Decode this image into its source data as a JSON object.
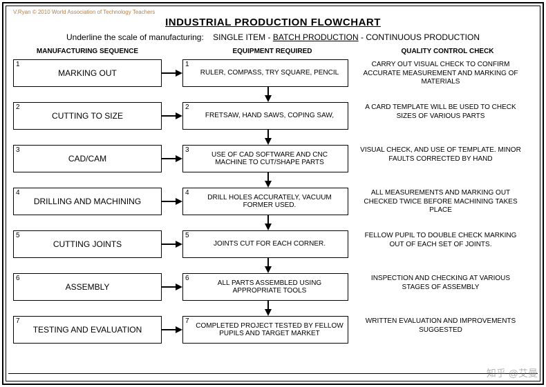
{
  "copyright": "V.Ryan © 2010 World Association of Technology Teachers",
  "title": "INDUSTRIAL PRODUCTION FLOWCHART",
  "scale": {
    "prompt": "Underline the scale of manufacturing:",
    "opt1": "SINGLE ITEM",
    "opt2": "BATCH PRODUCTION",
    "opt3": "CONTINUOUS PRODUCTION",
    "sep": "  -  "
  },
  "headers": {
    "left": "MANUFACTURING SEQUENCE",
    "mid": "EQUIPMENT REQUIRED",
    "right": "QUALITY CONTROL CHECK"
  },
  "rows": [
    {
      "n": "1",
      "seq": "MARKING OUT",
      "equip": "RULER, COMPASS, TRY SQUARE, PENCIL",
      "qc": "CARRY OUT VISUAL CHECK TO CONFIRM ACCURATE MEASUREMENT AND MARKING OF MATERIALS"
    },
    {
      "n": "2",
      "seq": "CUTTING TO SIZE",
      "equip": "FRETSAW, HAND SAWS, COPING SAW,",
      "qc": "A CARD TEMPLATE WILL BE USED TO CHECK SIZES OF VARIOUS PARTS"
    },
    {
      "n": "3",
      "seq": "CAD/CAM",
      "equip": "USE OF CAD SOFTWARE AND CNC MACHINE TO CUT/SHAPE PARTS",
      "qc": "VISUAL CHECK, AND USE OF TEMPLATE. MINOR FAULTS CORRECTED BY HAND"
    },
    {
      "n": "4",
      "seq": "DRILLING AND MACHINING",
      "equip": "DRILL HOLES ACCURATELY, VACUUM FORMER USED.",
      "qc": "ALL MEASUREMENTS AND MARKING OUT CHECKED TWICE BEFORE MACHINING TAKES PLACE"
    },
    {
      "n": "5",
      "seq": "CUTTING JOINTS",
      "equip": "JOINTS CUT FOR EACH CORNER.",
      "qc": "FELLOW PUPIL TO DOUBLE CHECK MARKING OUT OF EACH SET OF JOINTS."
    },
    {
      "n": "6",
      "seq": "ASSEMBLY",
      "equip": "ALL PARTS ASSEMBLED USING APPROPRIATE TOOLS",
      "qc": "INSPECTION AND CHECKING AT VARIOUS STAGES OF ASSEMBLY"
    },
    {
      "n": "7",
      "seq": "TESTING AND EVALUATION",
      "equip": "COMPLETED PROJECT TESTED BY FELLOW PUPILS AND TARGET MARKET",
      "qc": "WRITTEN EVALUATION  AND IMPROVEMENTS SUGGESTED"
    }
  ],
  "style": {
    "arrow_color": "#000000",
    "border_color": "#000000",
    "background": "#ffffff"
  },
  "watermark": "知乎 @艾曼"
}
